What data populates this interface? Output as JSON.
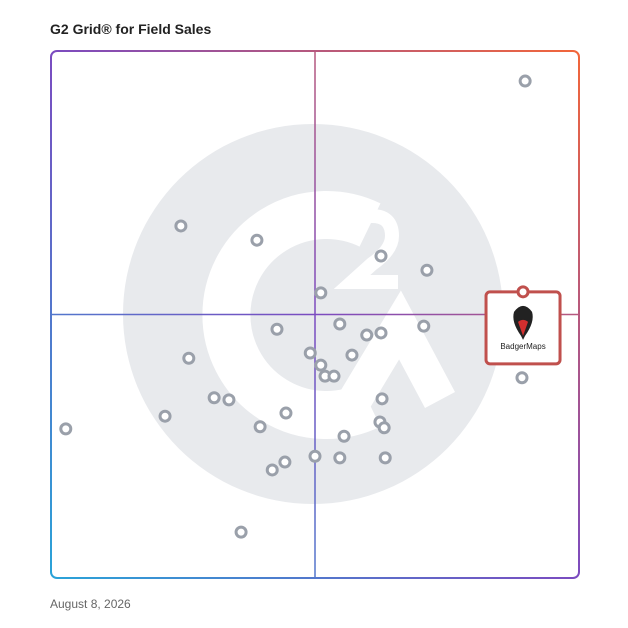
{
  "chart_data": {
    "type": "scatter",
    "title": "G2 Grid® for Field Sales",
    "date": "August 8, 2026",
    "xlim": [
      0,
      100
    ],
    "ylim": [
      0,
      100
    ],
    "x_divider": 50,
    "y_divider": 50,
    "series": [
      {
        "color": "#9aa0aa",
        "x": [
          89.8,
          24.6,
          39.0,
          62.5,
          71.2,
          51.1,
          54.7,
          70.6,
          42.8,
          59.8,
          62.5,
          26.1,
          49.1,
          51.1,
          57.0,
          51.9,
          53.6,
          89.2,
          30.9,
          33.7,
          62.7,
          21.6,
          44.5,
          2.8,
          39.6,
          62.3,
          63.1,
          55.5,
          50.0,
          54.7,
          63.3,
          44.3,
          41.9,
          36.0
        ],
        "values": [
          94.3,
          66.8,
          64.1,
          61.1,
          58.4,
          54.1,
          48.2,
          47.8,
          47.2,
          46.1,
          46.5,
          41.7,
          42.7,
          40.4,
          42.3,
          38.3,
          38.3,
          38.0,
          34.2,
          33.8,
          34.0,
          30.7,
          31.3,
          28.3,
          28.7,
          29.6,
          28.5,
          26.9,
          23.1,
          22.8,
          22.8,
          22.0,
          20.5,
          8.7
        ]
      }
    ],
    "highlight": {
      "label": "BadgerMaps",
      "x": 89.4,
      "y": 54.3,
      "color": "#c0504d"
    }
  }
}
